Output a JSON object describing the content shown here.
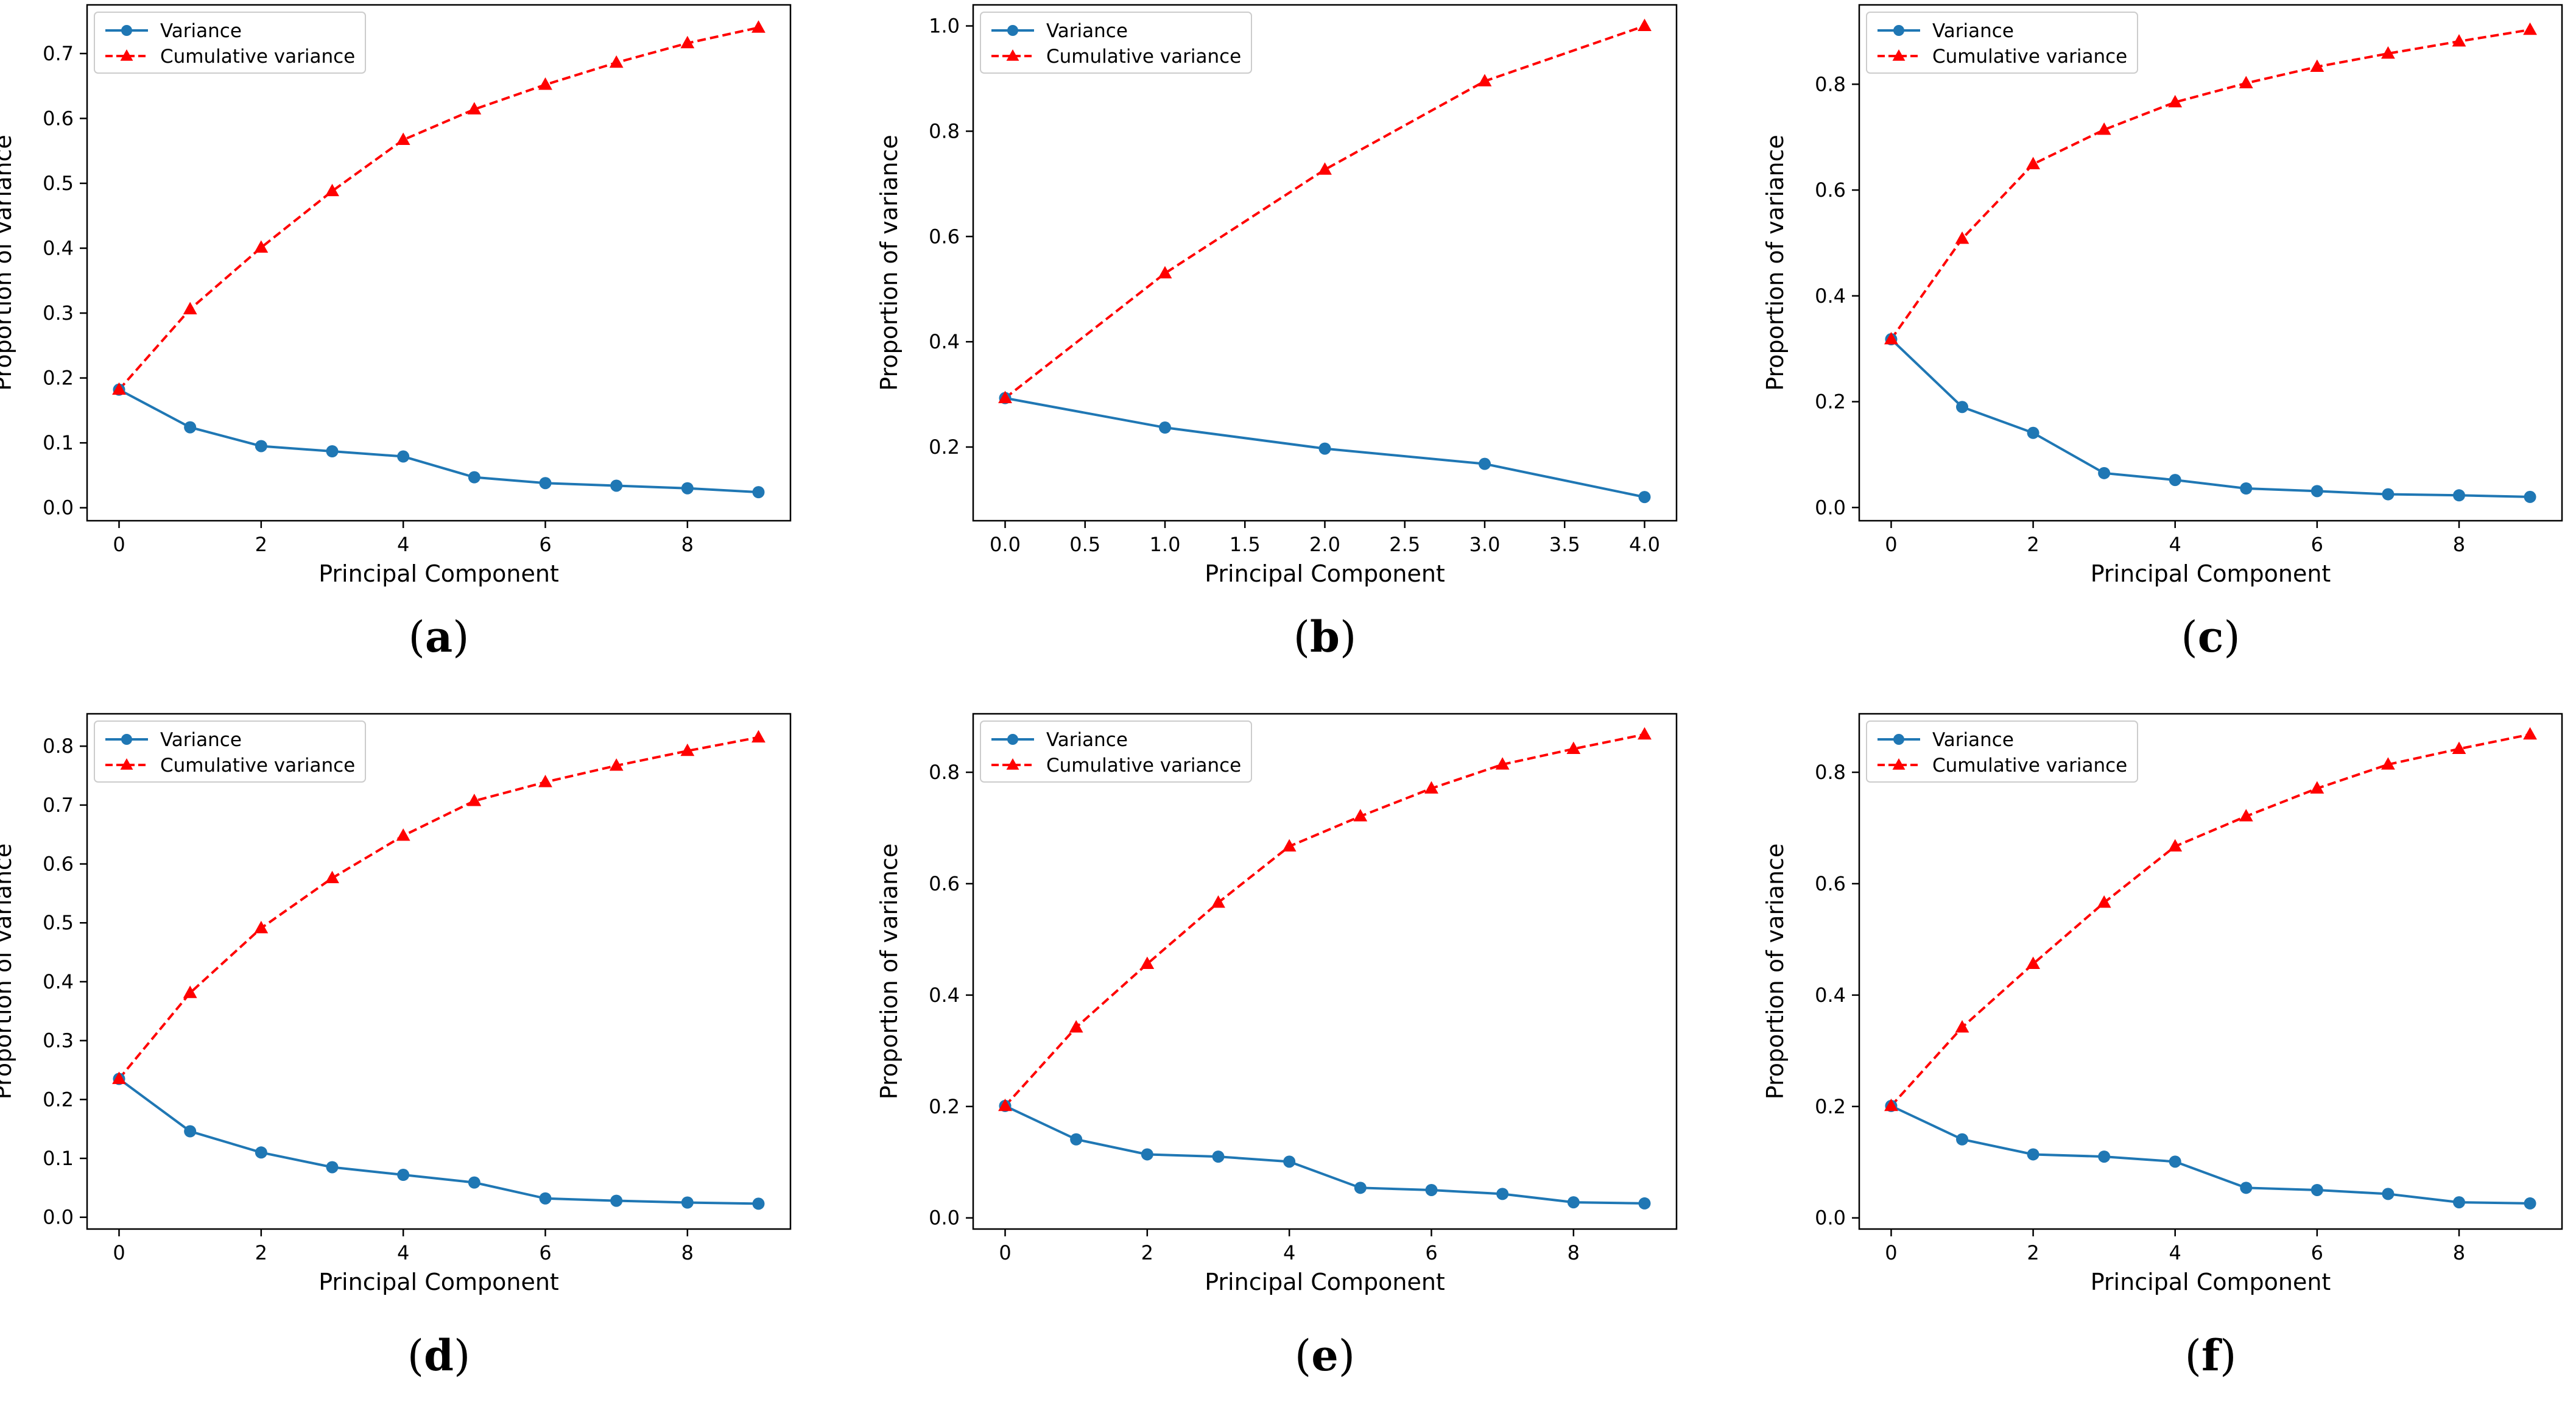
{
  "figure": {
    "xlabel": "Principal Component",
    "ylabel": "Proportion of variance",
    "legend": [
      "Variance",
      "Cumulative variance"
    ],
    "colors": {
      "variance": "#1f77b4",
      "cumulative": "#ff0000"
    }
  },
  "chart_data": [
    {
      "label": "a",
      "type": "line",
      "x": [
        0,
        1,
        2,
        3,
        4,
        5,
        6,
        7,
        8,
        9
      ],
      "xlim": [
        -0.45,
        9.45
      ],
      "ylim": [
        -0.02,
        0.775
      ],
      "xticks": [
        0,
        2,
        4,
        6,
        8
      ],
      "xtick_labels": [
        "0",
        "2",
        "4",
        "6",
        "8"
      ],
      "yticks": [
        0,
        0.1,
        0.2,
        0.3,
        0.4,
        0.5,
        0.6,
        0.7
      ],
      "ytick_labels": [
        "0.0",
        "0.1",
        "0.2",
        "0.3",
        "0.4",
        "0.5",
        "0.6",
        "0.7"
      ],
      "series": [
        {
          "name": "Variance",
          "values": [
            0.182,
            0.124,
            0.095,
            0.087,
            0.079,
            0.047,
            0.038,
            0.034,
            0.03,
            0.024
          ]
        },
        {
          "name": "Cumulative variance",
          "values": [
            0.182,
            0.306,
            0.401,
            0.488,
            0.567,
            0.614,
            0.652,
            0.686,
            0.716,
            0.74
          ]
        }
      ]
    },
    {
      "label": "b",
      "type": "line",
      "x": [
        0,
        1,
        2,
        3,
        4
      ],
      "xlim": [
        -0.2,
        4.2
      ],
      "ylim": [
        0.06,
        1.04
      ],
      "xticks": [
        0,
        0.5,
        1,
        1.5,
        2,
        2.5,
        3,
        3.5,
        4
      ],
      "xtick_labels": [
        "0.0",
        "0.5",
        "1.0",
        "1.5",
        "2.0",
        "2.5",
        "3.0",
        "3.5",
        "4.0"
      ],
      "yticks": [
        0.2,
        0.4,
        0.6,
        0.8,
        1.0
      ],
      "ytick_labels": [
        "0.2",
        "0.4",
        "0.6",
        "0.8",
        "1.0"
      ],
      "series": [
        {
          "name": "Variance",
          "values": [
            0.293,
            0.237,
            0.197,
            0.168,
            0.105
          ]
        },
        {
          "name": "Cumulative variance",
          "values": [
            0.293,
            0.53,
            0.727,
            0.895,
            1.0
          ]
        }
      ]
    },
    {
      "label": "c",
      "type": "line",
      "x": [
        0,
        1,
        2,
        3,
        4,
        5,
        6,
        7,
        8,
        9
      ],
      "xlim": [
        -0.45,
        9.45
      ],
      "ylim": [
        -0.025,
        0.95
      ],
      "xticks": [
        0,
        2,
        4,
        6,
        8
      ],
      "xtick_labels": [
        "0",
        "2",
        "4",
        "6",
        "8"
      ],
      "yticks": [
        0,
        0.2,
        0.4,
        0.6,
        0.8
      ],
      "ytick_labels": [
        "0.0",
        "0.2",
        "0.4",
        "0.6",
        "0.8"
      ],
      "series": [
        {
          "name": "Variance",
          "values": [
            0.318,
            0.19,
            0.141,
            0.065,
            0.052,
            0.036,
            0.031,
            0.025,
            0.023,
            0.02
          ]
        },
        {
          "name": "Cumulative variance",
          "values": [
            0.318,
            0.508,
            0.649,
            0.714,
            0.766,
            0.802,
            0.833,
            0.858,
            0.881,
            0.903
          ]
        }
      ]
    },
    {
      "label": "d",
      "type": "line",
      "x": [
        0,
        1,
        2,
        3,
        4,
        5,
        6,
        7,
        8,
        9
      ],
      "xlim": [
        -0.45,
        9.45
      ],
      "ylim": [
        -0.02,
        0.855
      ],
      "xticks": [
        0,
        2,
        4,
        6,
        8
      ],
      "xtick_labels": [
        "0",
        "2",
        "4",
        "6",
        "8"
      ],
      "yticks": [
        0,
        0.1,
        0.2,
        0.3,
        0.4,
        0.5,
        0.6,
        0.7,
        0.8
      ],
      "ytick_labels": [
        "0.0",
        "0.1",
        "0.2",
        "0.3",
        "0.4",
        "0.5",
        "0.6",
        "0.7",
        "0.8"
      ],
      "series": [
        {
          "name": "Variance",
          "values": [
            0.235,
            0.146,
            0.11,
            0.085,
            0.072,
            0.059,
            0.032,
            0.028,
            0.025,
            0.023
          ]
        },
        {
          "name": "Cumulative variance",
          "values": [
            0.235,
            0.381,
            0.491,
            0.576,
            0.648,
            0.707,
            0.739,
            0.767,
            0.792,
            0.815
          ]
        }
      ]
    },
    {
      "label": "e",
      "type": "line",
      "x": [
        0,
        1,
        2,
        3,
        4,
        5,
        6,
        7,
        8,
        9
      ],
      "xlim": [
        -0.45,
        9.45
      ],
      "ylim": [
        -0.02,
        0.905
      ],
      "xticks": [
        0,
        2,
        4,
        6,
        8
      ],
      "xtick_labels": [
        "0",
        "2",
        "4",
        "6",
        "8"
      ],
      "yticks": [
        0,
        0.2,
        0.4,
        0.6,
        0.8
      ],
      "ytick_labels": [
        "0.0",
        "0.2",
        "0.4",
        "0.6",
        "0.8"
      ],
      "series": [
        {
          "name": "Variance",
          "values": [
            0.201,
            0.141,
            0.114,
            0.11,
            0.101,
            0.054,
            0.05,
            0.043,
            0.028,
            0.026
          ]
        },
        {
          "name": "Cumulative variance",
          "values": [
            0.201,
            0.342,
            0.456,
            0.566,
            0.667,
            0.721,
            0.771,
            0.814,
            0.842,
            0.868
          ]
        }
      ]
    },
    {
      "label": "f",
      "type": "line",
      "x": [
        0,
        1,
        2,
        3,
        4,
        5,
        6,
        7,
        8,
        9
      ],
      "xlim": [
        -0.45,
        9.45
      ],
      "ylim": [
        -0.02,
        0.905
      ],
      "xticks": [
        0,
        2,
        4,
        6,
        8
      ],
      "xtick_labels": [
        "0",
        "2",
        "4",
        "6",
        "8"
      ],
      "yticks": [
        0,
        0.2,
        0.4,
        0.6,
        0.8
      ],
      "ytick_labels": [
        "0.0",
        "0.2",
        "0.4",
        "0.6",
        "0.8"
      ],
      "series": [
        {
          "name": "Variance",
          "values": [
            0.201,
            0.141,
            0.114,
            0.11,
            0.101,
            0.054,
            0.05,
            0.043,
            0.028,
            0.026
          ]
        },
        {
          "name": "Cumulative variance",
          "values": [
            0.201,
            0.342,
            0.456,
            0.566,
            0.667,
            0.721,
            0.771,
            0.814,
            0.842,
            0.868
          ]
        }
      ]
    }
  ]
}
